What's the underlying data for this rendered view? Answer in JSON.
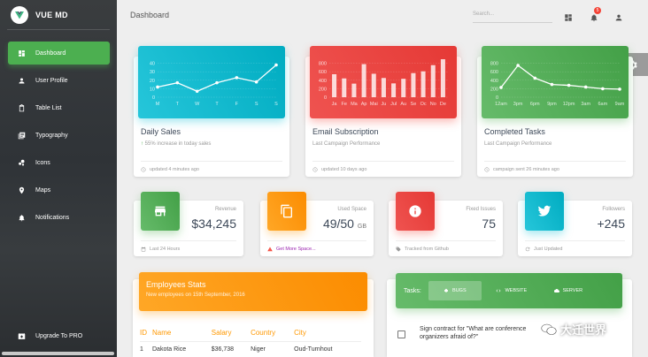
{
  "brand": {
    "name": "VUE MD"
  },
  "sidebar": {
    "items": [
      {
        "label": "Dashboard",
        "icon": "dashboard-icon",
        "active": true
      },
      {
        "label": "User Profile",
        "icon": "person-icon"
      },
      {
        "label": "Table List",
        "icon": "clipboard-icon"
      },
      {
        "label": "Typography",
        "icon": "library-books-icon"
      },
      {
        "label": "Icons",
        "icon": "bubble-chart-icon"
      },
      {
        "label": "Maps",
        "icon": "location-pin-icon"
      },
      {
        "label": "Notifications",
        "icon": "bell-icon"
      }
    ],
    "upgrade_label": "Upgrade To PRO"
  },
  "topbar": {
    "title": "Dashboard",
    "search_placeholder": "Search...",
    "notification_count": "5"
  },
  "charts": {
    "daily_sales": {
      "title": "Daily Sales",
      "subtitle": "55% increase in today sales",
      "footer": "updated 4 minutes ago"
    },
    "email": {
      "title": "Email Subscription",
      "subtitle": "Last Campaign Performance",
      "footer": "updated 10 days ago"
    },
    "completed": {
      "title": "Completed Tasks",
      "subtitle": "Last Campaign Performance",
      "footer": "campaign sent 26 minutes ago"
    }
  },
  "chart_data": [
    {
      "type": "line",
      "color": "#26c6da",
      "categories": [
        "M",
        "T",
        "W",
        "T",
        "F",
        "S",
        "S"
      ],
      "values": [
        12,
        17,
        7,
        17,
        23,
        18,
        38
      ],
      "ylim": [
        0,
        50
      ],
      "yticks": [
        "0",
        "10",
        "20",
        "30",
        "40"
      ],
      "grid": true
    },
    {
      "type": "bar",
      "color": "#f44336",
      "categories": [
        "Ja",
        "Fe",
        "Ma",
        "Ap",
        "Mai",
        "Ju",
        "Jul",
        "Au",
        "Se",
        "Oc",
        "No",
        "De"
      ],
      "values": [
        542,
        443,
        320,
        780,
        553,
        453,
        326,
        434,
        568,
        610,
        756,
        895
      ],
      "ylim": [
        0,
        1000
      ],
      "yticks": [
        "0",
        "200",
        "400",
        "600",
        "800"
      ],
      "grid": true
    },
    {
      "type": "line",
      "color": "#4caf50",
      "categories": [
        "12am",
        "3pm",
        "6pm",
        "9pm",
        "12pm",
        "3am",
        "6am",
        "9am"
      ],
      "xticks": [
        "12am",
        "3pm",
        "6pm",
        "9pm",
        "12pm",
        "3am",
        "6am",
        "9am"
      ],
      "values": [
        230,
        750,
        450,
        300,
        280,
        240,
        200,
        190
      ],
      "ylim": [
        0,
        1000
      ],
      "yticks": [
        "0",
        "200",
        "400",
        "600",
        "800"
      ],
      "grid": true
    }
  ],
  "stats": [
    {
      "category": "Revenue",
      "value": "$34,245",
      "unit": "",
      "footer": "Last 24 Hours",
      "color": "#4caf50",
      "icon": "store-icon"
    },
    {
      "category": "Used Space",
      "value": "49/50",
      "unit": "GB",
      "footer": "Get More Space...",
      "color": "#ff9800",
      "icon": "content-copy-icon"
    },
    {
      "category": "Fixed Issues",
      "value": "75",
      "unit": "",
      "footer": "Tracked from Github",
      "color": "#f44336",
      "icon": "info-icon"
    },
    {
      "category": "Followers",
      "value": "+245",
      "unit": "",
      "footer": "Just Updated",
      "color": "#00bcd4",
      "icon": "twitter-icon"
    }
  ],
  "employees": {
    "title": "Employees Stats",
    "subtitle": "New employees on 15th September, 2016",
    "columns": [
      "ID",
      "Name",
      "Salary",
      "Country",
      "City"
    ],
    "rows": [
      [
        "1",
        "Dakota Rice",
        "$36,738",
        "Niger",
        "Oud-Turnhout"
      ]
    ]
  },
  "tasks": {
    "label": "Tasks:",
    "tabs": [
      "BUGS",
      "WEBSITE",
      "SERVER"
    ],
    "items": [
      "Sign contract for \"What are conference organizers afraid of?\""
    ]
  },
  "watermark": {
    "text": "大迁世界"
  }
}
